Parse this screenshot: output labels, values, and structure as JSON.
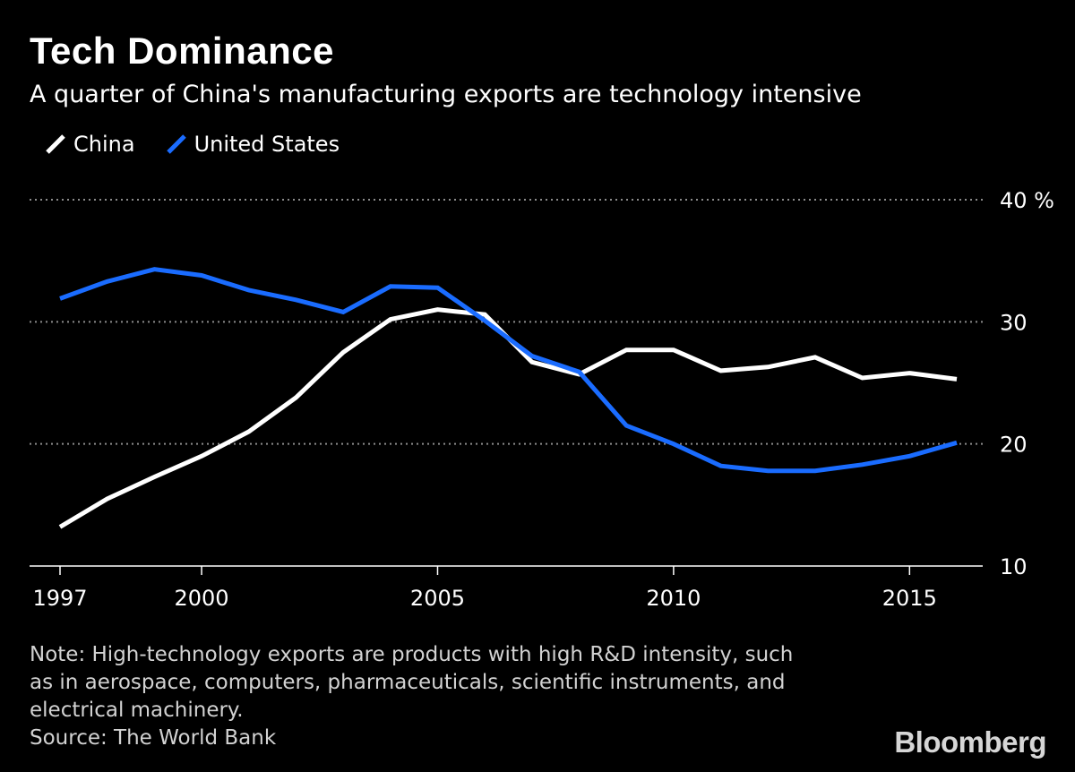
{
  "title": "Tech Dominance",
  "subtitle": "A quarter of China's manufacturing exports are technology intensive",
  "note": {
    "lines": [
      "Note: High-technology exports are products with high R&D intensity, such",
      "as in aerospace, computers, pharmaceuticals, scientific instruments, and",
      "electrical machinery."
    ],
    "source": "Source: The World Bank"
  },
  "brand": "Bloomberg",
  "colors": {
    "background": "#000000",
    "china": "#ffffff",
    "united_states": "#1a6cff",
    "grid": "#8c8c8c",
    "axis": "#ffffff"
  },
  "chart_data": {
    "type": "line",
    "title": "Tech Dominance",
    "subtitle": "A quarter of China's manufacturing exports are technology intensive",
    "xlabel": "",
    "ylabel": "",
    "y_unit": "%",
    "xlim": [
      1997,
      2016
    ],
    "ylim": [
      10,
      40
    ],
    "x_ticks": [
      1997,
      2000,
      2005,
      2010,
      2015
    ],
    "y_ticks": [
      10,
      20,
      30,
      40
    ],
    "y_tick_labels": [
      "10",
      "20",
      "30",
      "40 %"
    ],
    "grid": "horizontal dotted at 20, 30, 40",
    "legend_position": "top-left",
    "x": [
      1997,
      1998,
      1999,
      2000,
      2001,
      2002,
      2003,
      2004,
      2005,
      2006,
      2007,
      2008,
      2009,
      2010,
      2011,
      2012,
      2013,
      2014,
      2015,
      2016
    ],
    "series": [
      {
        "name": "China",
        "color": "#ffffff",
        "values": [
          13.2,
          15.5,
          17.3,
          19.0,
          21.0,
          23.8,
          27.5,
          30.2,
          31.0,
          30.6,
          26.7,
          25.7,
          27.7,
          27.7,
          26.0,
          26.3,
          27.1,
          25.4,
          25.8,
          25.3
        ]
      },
      {
        "name": "United States",
        "color": "#1a6cff",
        "values": [
          31.9,
          33.3,
          34.3,
          33.8,
          32.6,
          31.8,
          30.8,
          32.9,
          32.8,
          30.1,
          27.2,
          25.9,
          21.5,
          20.0,
          18.2,
          17.8,
          17.8,
          18.3,
          19.0,
          20.1
        ]
      }
    ]
  }
}
